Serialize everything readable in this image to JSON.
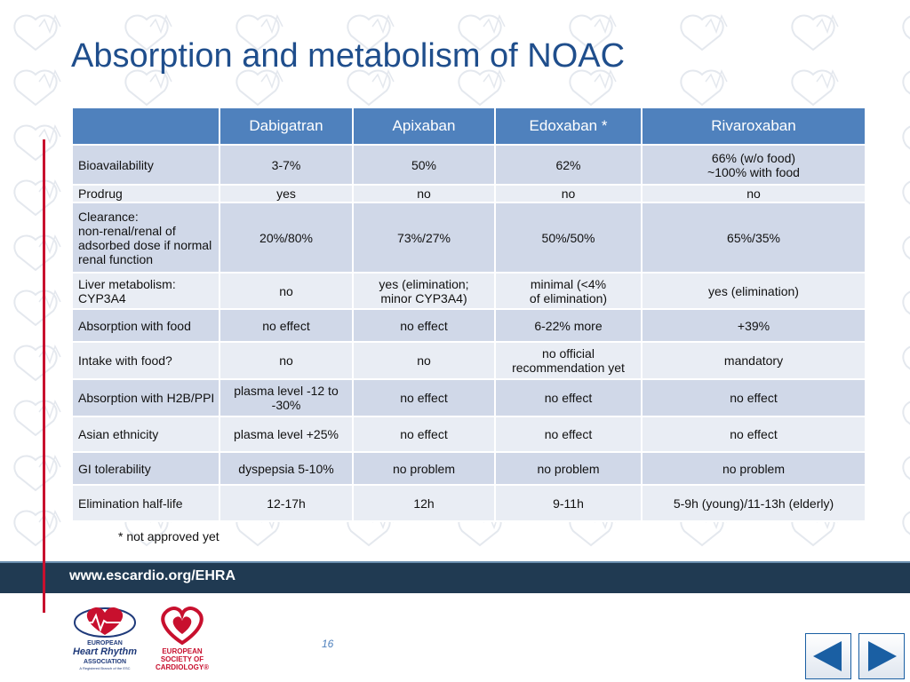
{
  "slide": {
    "title": "Absorption and metabolism of NOAC",
    "footnote": "* not approved yet",
    "footer_url": "www.escardio.org/EHRA",
    "page_number": "16"
  },
  "table": {
    "headers": [
      "",
      "Dabigatran",
      "Apixaban",
      "Edoxaban *",
      "Rivaroxaban"
    ],
    "rows": [
      {
        "label": "Bioavailability",
        "cells": [
          "3-7%",
          "50%",
          "62%",
          "66% (w/o food)\n~100% with food"
        ]
      },
      {
        "label": "Prodrug",
        "cells": [
          "yes",
          "no",
          "no",
          "no"
        ]
      },
      {
        "label": "Clearance:\nnon-renal/renal of adsorbed dose if normal renal function",
        "cells": [
          "20%/80%",
          "73%/27%",
          "50%/50%",
          "65%/35%"
        ]
      },
      {
        "label": "Liver metabolism: CYP3A4",
        "cells": [
          "no",
          "yes (elimination;\nminor  CYP3A4)",
          "minimal (<4%\nof elimination)",
          "yes (elimination)"
        ]
      },
      {
        "label": "Absorption with food",
        "cells": [
          "no effect",
          "no effect",
          "6-22% more",
          "+39%"
        ]
      },
      {
        "label": "Intake with food?",
        "cells": [
          "no",
          "no",
          "no official recommendation yet",
          "mandatory"
        ]
      },
      {
        "label": "Absorption with H2B/PPI",
        "cells": [
          "plasma level -12 to -30%",
          "no effect",
          "no effect",
          "no effect"
        ]
      },
      {
        "label": "Asian ethnicity",
        "cells": [
          "plasma level +25%",
          "no effect",
          "no effect",
          "no effect"
        ]
      },
      {
        "label": "GI tolerability",
        "cells": [
          "dyspepsia 5-10%",
          "no problem",
          "no problem",
          "no problem"
        ]
      },
      {
        "label": "Elimination half-life",
        "cells": [
          "12-17h",
          "12h",
          "9-11h",
          "5-9h (young)/11-13h (elderly)"
        ]
      }
    ]
  },
  "logos": {
    "ehra": [
      "EUROPEAN",
      "Heart Rhythm",
      "ASSOCIATION",
      "A Registered Branch of the ESC"
    ],
    "esc": [
      "EUROPEAN",
      "SOCIETY OF",
      "CARDIOLOGY®"
    ]
  },
  "nav": {
    "prev_icon": "triangle-left-icon",
    "next_icon": "triangle-right-icon"
  },
  "colors": {
    "title": "#1f4e8c",
    "header_bg": "#4f81bd",
    "row_dark": "#d0d8e8",
    "row_light": "#e9edf4",
    "footer_bg": "#203a52",
    "accent_red": "#c8102e"
  }
}
